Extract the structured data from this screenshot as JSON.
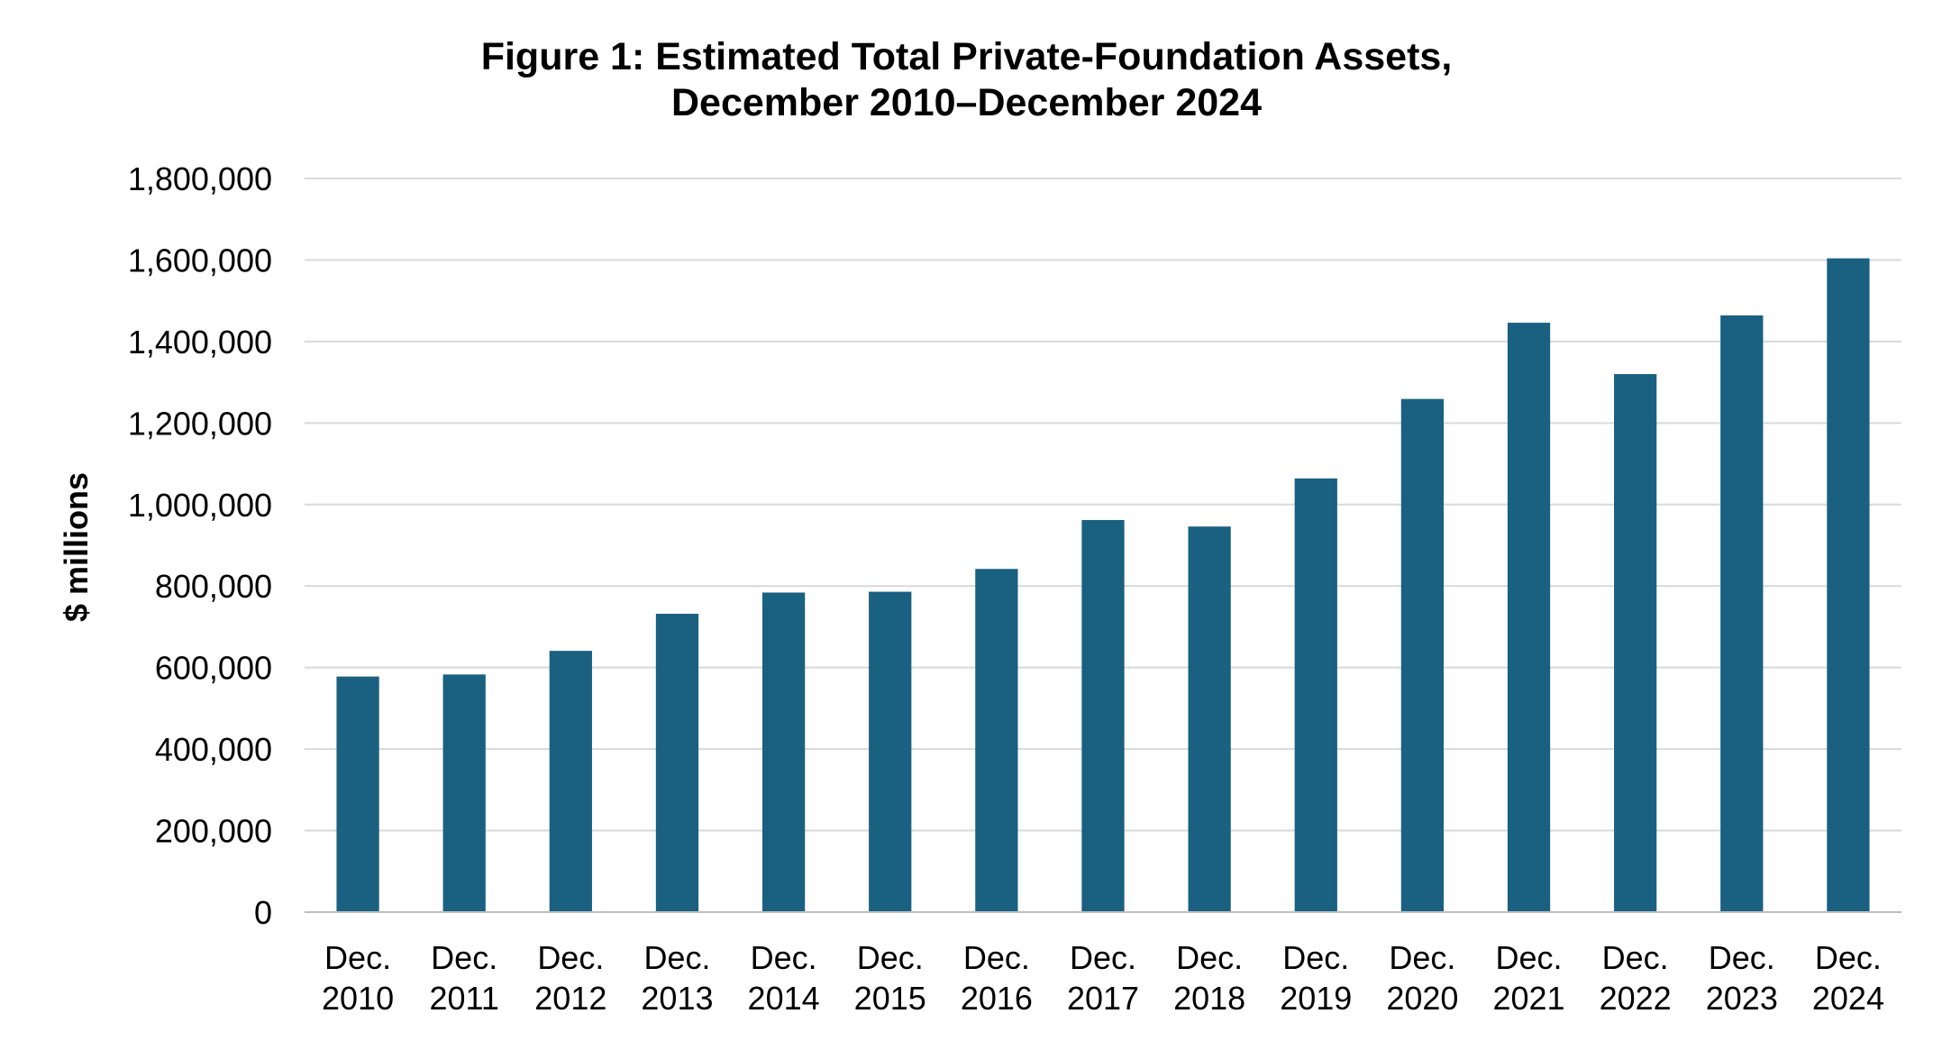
{
  "chart_data": {
    "type": "bar",
    "title": [
      "Figure 1: Estimated Total Private-Foundation Assets,",
      "December 2010–December 2024"
    ],
    "xlabel": "",
    "ylabel": "$ millions",
    "ylim": [
      0,
      1800000
    ],
    "yticks": [
      "0",
      "200,000",
      "400,000",
      "600,000",
      "800,000",
      "1,000,000",
      "1,200,000",
      "1,400,000",
      "1,600,000",
      "1,800,000"
    ],
    "ytick_values": [
      0,
      200000,
      400000,
      600000,
      800000,
      1000000,
      1200000,
      1400000,
      1600000,
      1800000
    ],
    "categories": [
      [
        "Dec.",
        "2010"
      ],
      [
        "Dec.",
        "2011"
      ],
      [
        "Dec.",
        "2012"
      ],
      [
        "Dec.",
        "2013"
      ],
      [
        "Dec.",
        "2014"
      ],
      [
        "Dec.",
        "2015"
      ],
      [
        "Dec.",
        "2016"
      ],
      [
        "Dec.",
        "2017"
      ],
      [
        "Dec.",
        "2018"
      ],
      [
        "Dec.",
        "2019"
      ],
      [
        "Dec.",
        "2020"
      ],
      [
        "Dec.",
        "2021"
      ],
      [
        "Dec.",
        "2022"
      ],
      [
        "Dec.",
        "2023"
      ],
      [
        "Dec.",
        "2024"
      ]
    ],
    "values": [
      578000,
      583000,
      641000,
      732000,
      784000,
      786000,
      842000,
      962000,
      946000,
      1064000,
      1259000,
      1446000,
      1320000,
      1464000,
      1604000
    ],
    "grid": true,
    "bar_color": "#1a6080",
    "grid_color": "#d9d9d9",
    "axis_color": "#bfbfbf"
  }
}
